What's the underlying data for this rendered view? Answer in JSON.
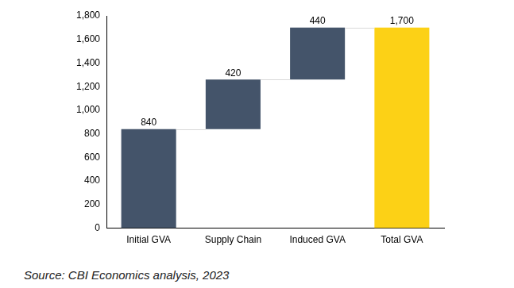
{
  "chart_data": {
    "type": "waterfall",
    "categories": [
      "Initial GVA",
      "Supply Chain",
      "Induced GVA",
      "Total GVA"
    ],
    "values": [
      840,
      420,
      440,
      1700
    ],
    "value_labels": [
      "840",
      "420",
      "440",
      "1,700"
    ],
    "colors": [
      "#44546a",
      "#44546a",
      "#44546a",
      "#fcd116"
    ],
    "ylim": [
      0,
      1800
    ],
    "yticks": [
      0,
      200,
      400,
      600,
      800,
      {
        "value": 1000,
        "label": "1,000"
      },
      {
        "value": 1200,
        "label": "1,200"
      },
      {
        "value": 1400,
        "label": "1,400"
      },
      {
        "value": 1600,
        "label": "1,600"
      },
      {
        "value": 1800,
        "label": "1,800"
      }
    ],
    "grid": false,
    "data_labels": true,
    "source": "Source: CBI Economics analysis, 2023"
  }
}
